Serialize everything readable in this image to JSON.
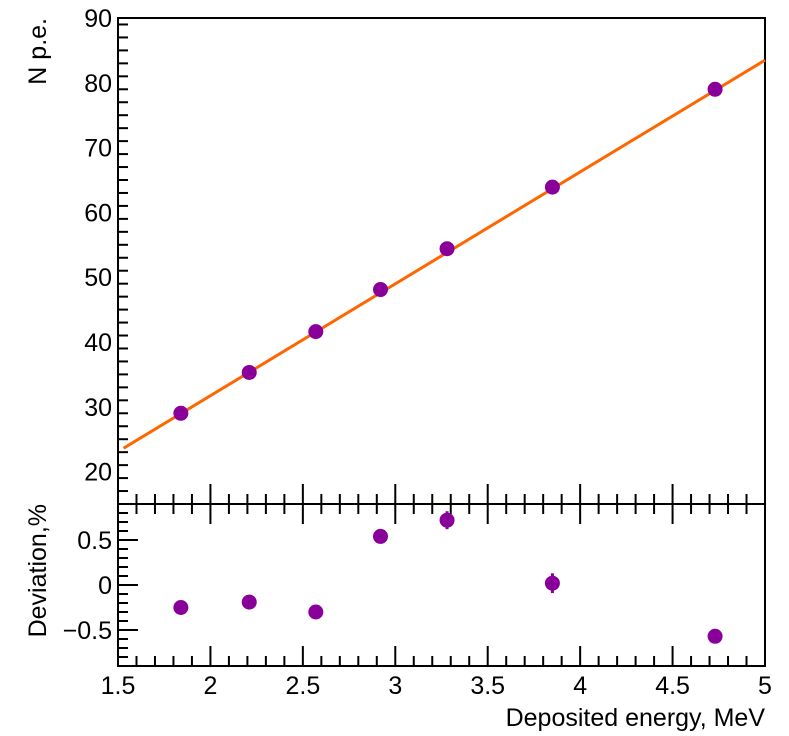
{
  "chart_data": [
    {
      "type": "scatter",
      "panel": "main",
      "xlabel": "Deposited energy, MeV",
      "ylabel": "N p.e.",
      "xlim": [
        1.5,
        5.0
      ],
      "ylim": [
        15,
        90
      ],
      "yticks": [
        "20",
        "30",
        "40",
        "50",
        "60",
        "70",
        "80",
        "90"
      ],
      "series": [
        {
          "name": "data",
          "color": "#880099",
          "x": [
            1.84,
            2.21,
            2.57,
            2.92,
            3.28,
            3.85,
            4.73
          ],
          "y": [
            29.0,
            35.3,
            41.6,
            48.1,
            54.4,
            63.9,
            79.0
          ]
        },
        {
          "name": "linear fit",
          "type": "line",
          "color": "#ff6600",
          "x": [
            1.53,
            5.0
          ],
          "y": [
            23.6,
            83.5
          ]
        }
      ]
    },
    {
      "type": "scatter",
      "panel": "ratio",
      "xlabel": "Deposited energy, MeV",
      "ylabel": "Deviation,%",
      "xlim": [
        1.5,
        5.0
      ],
      "ylim": [
        -0.9,
        0.9
      ],
      "xticks": [
        "1.5",
        "2",
        "2.5",
        "3",
        "3.5",
        "4",
        "4.5",
        "5"
      ],
      "yticks": [
        "0.5",
        "0",
        "−0.5"
      ],
      "series": [
        {
          "name": "deviation",
          "color": "#880099",
          "x": [
            1.84,
            2.21,
            2.57,
            2.92,
            3.28,
            3.85,
            4.73
          ],
          "y": [
            -0.25,
            -0.19,
            -0.3,
            0.54,
            0.72,
            0.02,
            -0.57
          ],
          "err": [
            0.03,
            0.03,
            0.03,
            0.07,
            0.1,
            0.11,
            0.03
          ]
        }
      ]
    }
  ]
}
